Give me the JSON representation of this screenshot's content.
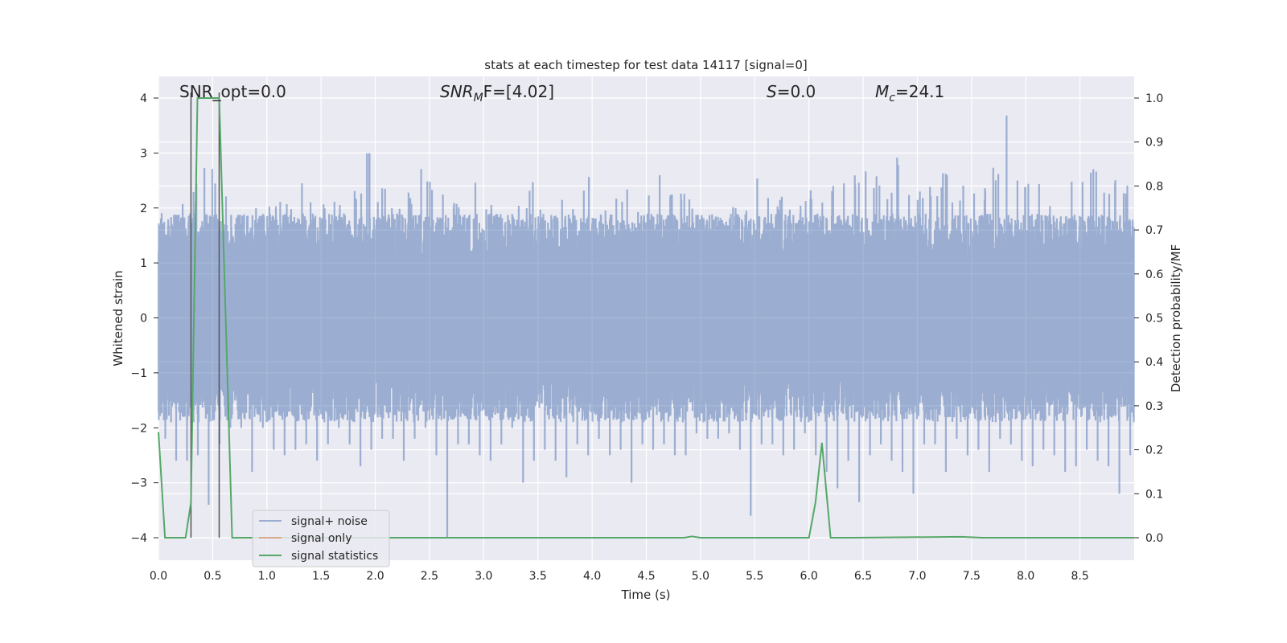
{
  "chart_data": {
    "type": "line",
    "title": "stats at each timestep for test data 14117 [signal=0]",
    "xlabel": "Time (s)",
    "ylabel": "Whitened strain",
    "ylabel_right": "Detection probability/MF",
    "xlim": [
      0,
      9
    ],
    "ylim": [
      -4.4,
      4.4
    ],
    "ylim_right": [
      -0.05,
      1.05
    ],
    "grid": true,
    "legend_position": "lower-left",
    "x_ticks": [
      "0.0",
      "0.5",
      "1.0",
      "1.5",
      "2.0",
      "2.5",
      "3.0",
      "3.5",
      "4.0",
      "4.5",
      "5.0",
      "5.5",
      "6.0",
      "6.5",
      "7.0",
      "7.5",
      "8.0",
      "8.5"
    ],
    "y_ticks": [
      "−4",
      "−3",
      "−2",
      "−1",
      "0",
      "1",
      "2",
      "3",
      "4"
    ],
    "y_ticks_right": [
      "0.0",
      "0.1",
      "0.2",
      "0.3",
      "0.4",
      "0.5",
      "0.6",
      "0.7",
      "0.8",
      "0.9",
      "1.0"
    ],
    "annotations": {
      "snr_opt": "SNR_opt=0.0",
      "snr_mf_main": "SNR",
      "snr_mf_sub": "M",
      "snr_mf_rest": "F=[4.02]",
      "s_main": "S",
      "s_rest": "=0.0",
      "mc_main": "M",
      "mc_sub": "c",
      "mc_rest": "=24.1"
    },
    "markers_x": [
      0.3,
      0.56
    ],
    "series": [
      {
        "name": "signal+ noise",
        "color": "#4c72b0",
        "bin_width": 0.1,
        "bin_max": [
          2.1,
          2.0,
          2.4,
          2.5,
          3.0,
          2.6,
          2.4,
          2.0,
          1.9,
          2.0,
          2.1,
          2.3,
          2.1,
          2.6,
          2.2,
          2.3,
          2.2,
          1.9,
          2.5,
          3.15,
          2.4,
          2.0,
          2.1,
          2.3,
          2.8,
          2.6,
          2.3,
          2.1,
          2.0,
          2.6,
          2.1,
          2.0,
          2.0,
          2.2,
          2.5,
          2.0,
          1.9,
          2.4,
          2.3,
          2.7,
          1.8,
          2.0,
          2.4,
          2.6,
          2.0,
          2.4,
          2.7,
          2.5,
          2.3,
          2.3,
          2.0,
          1.9,
          1.8,
          2.2,
          2.0,
          2.6,
          2.4,
          2.3,
          2.0,
          2.3,
          2.4,
          2.2,
          2.5,
          2.7,
          2.6,
          2.7,
          2.6,
          2.3,
          3.1,
          2.4,
          2.5,
          2.4,
          2.7,
          2.3,
          2.6,
          2.3,
          2.4,
          2.8,
          3.9,
          2.8,
          2.5,
          2.6,
          2.2,
          2.1,
          2.6,
          2.7,
          2.8,
          2.4,
          2.6,
          2.5
        ],
        "bin_min": [
          -2.2,
          -2.6,
          -2.6,
          -2.5,
          -3.4,
          -2.3,
          -2.0,
          -2.0,
          -2.8,
          -2.0,
          -2.4,
          -2.5,
          -2.4,
          -2.3,
          -2.6,
          -2.3,
          -2.0,
          -2.3,
          -2.7,
          -2.4,
          -2.2,
          -2.2,
          -2.6,
          -2.2,
          -2.0,
          -2.5,
          -4.0,
          -2.3,
          -2.3,
          -2.5,
          -2.6,
          -2.3,
          -2.0,
          -3.0,
          -2.6,
          -2.4,
          -2.6,
          -2.9,
          -2.3,
          -2.5,
          -2.2,
          -2.5,
          -2.4,
          -3.0,
          -2.3,
          -2.4,
          -2.3,
          -2.5,
          -2.5,
          -2.1,
          -2.2,
          -2.2,
          -2.1,
          -2.4,
          -3.6,
          -2.3,
          -2.3,
          -2.5,
          -2.4,
          -2.1,
          -2.5,
          -2.8,
          -3.1,
          -2.6,
          -3.35,
          -2.5,
          -2.3,
          -2.6,
          -2.8,
          -3.2,
          -2.3,
          -2.3,
          -2.8,
          -2.2,
          -2.5,
          -2.4,
          -2.8,
          -2.2,
          -2.3,
          -2.6,
          -2.7,
          -2.4,
          -2.5,
          -2.8,
          -2.7,
          -2.4,
          -2.6,
          -2.7,
          -3.2,
          -2.5
        ]
      },
      {
        "name": "signal only",
        "color": "#dd8452",
        "x": [],
        "y": []
      },
      {
        "name": "signal statistics",
        "color": "#55a868",
        "axis": "right",
        "x": [
          0.0,
          0.06,
          0.25,
          0.3,
          0.36,
          0.56,
          0.68,
          4.85,
          4.92,
          5.0,
          6.0,
          6.06,
          6.12,
          6.2,
          6.4,
          7.4,
          7.6,
          9.0
        ],
        "y": [
          0.24,
          0.0,
          0.0,
          0.08,
          1.0,
          1.0,
          0.0,
          0.0,
          0.003,
          0.0,
          0.0,
          0.08,
          0.216,
          0.0,
          0.0,
          0.002,
          0.0,
          0.0
        ]
      }
    ]
  }
}
